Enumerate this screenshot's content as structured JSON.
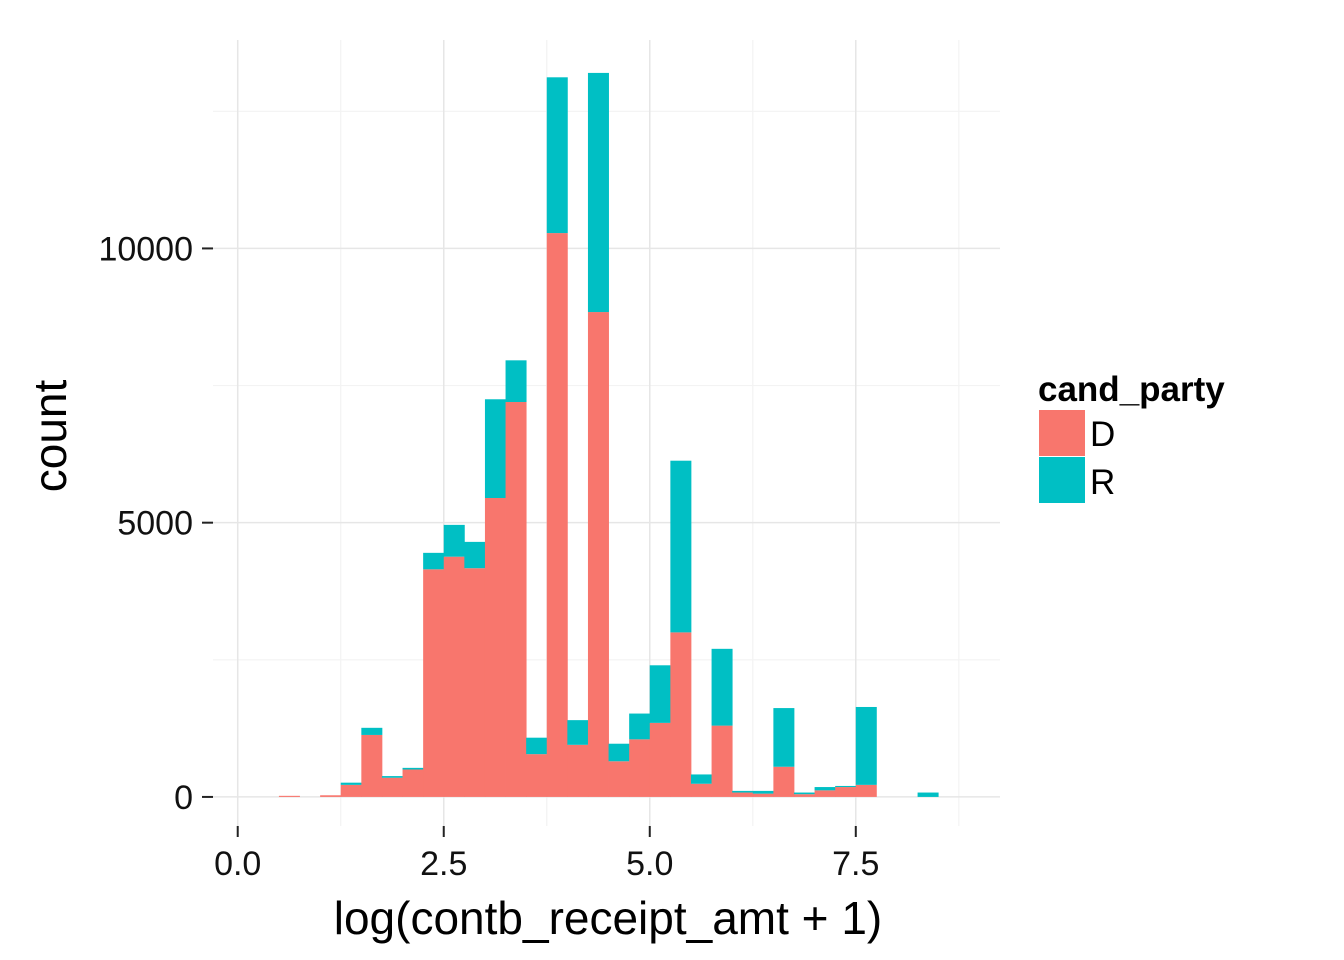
{
  "chart_data": {
    "type": "bar",
    "stacked": true,
    "title": "",
    "xlabel": "log(contb_receipt_amt + 1)",
    "ylabel": "count",
    "xlim": [
      -0.3,
      9.25
    ],
    "ylim": [
      -530,
      13800
    ],
    "x_ticks": [
      0.0,
      2.5,
      5.0,
      7.5
    ],
    "x_tick_labels": [
      "0.0",
      "2.5",
      "5.0",
      "7.5"
    ],
    "y_ticks": [
      0,
      5000,
      10000
    ],
    "y_tick_labels": [
      "0",
      "5000",
      "10000"
    ],
    "grid": true,
    "legend": {
      "title": "cand_party",
      "position": "right"
    },
    "bin_width": 0.25,
    "x": [
      0.625,
      0.875,
      1.125,
      1.375,
      1.625,
      1.875,
      2.125,
      2.375,
      2.625,
      2.875,
      3.125,
      3.375,
      3.625,
      3.875,
      4.125,
      4.375,
      4.625,
      4.875,
      5.125,
      5.375,
      5.625,
      5.875,
      6.125,
      6.375,
      6.625,
      6.875,
      7.125,
      7.375,
      7.625,
      7.875,
      8.125,
      8.375,
      8.625
    ],
    "series": [
      {
        "name": "D",
        "color": "#F8766D",
        "values": [
          20,
          0,
          30,
          220,
          1130,
          350,
          500,
          4150,
          4380,
          4170,
          5450,
          7200,
          780,
          10280,
          950,
          8840,
          650,
          1050,
          1350,
          3000,
          240,
          1300,
          80,
          60,
          550,
          50,
          120,
          180,
          220,
          0,
          0,
          0,
          0
        ]
      },
      {
        "name": "R",
        "color": "#00BFC4",
        "values": [
          0,
          0,
          0,
          40,
          130,
          30,
          30,
          300,
          580,
          480,
          1800,
          760,
          300,
          2840,
          450,
          4360,
          320,
          470,
          1050,
          3130,
          170,
          1400,
          30,
          50,
          1070,
          30,
          60,
          20,
          1420,
          0,
          0,
          80,
          0
        ]
      }
    ]
  }
}
